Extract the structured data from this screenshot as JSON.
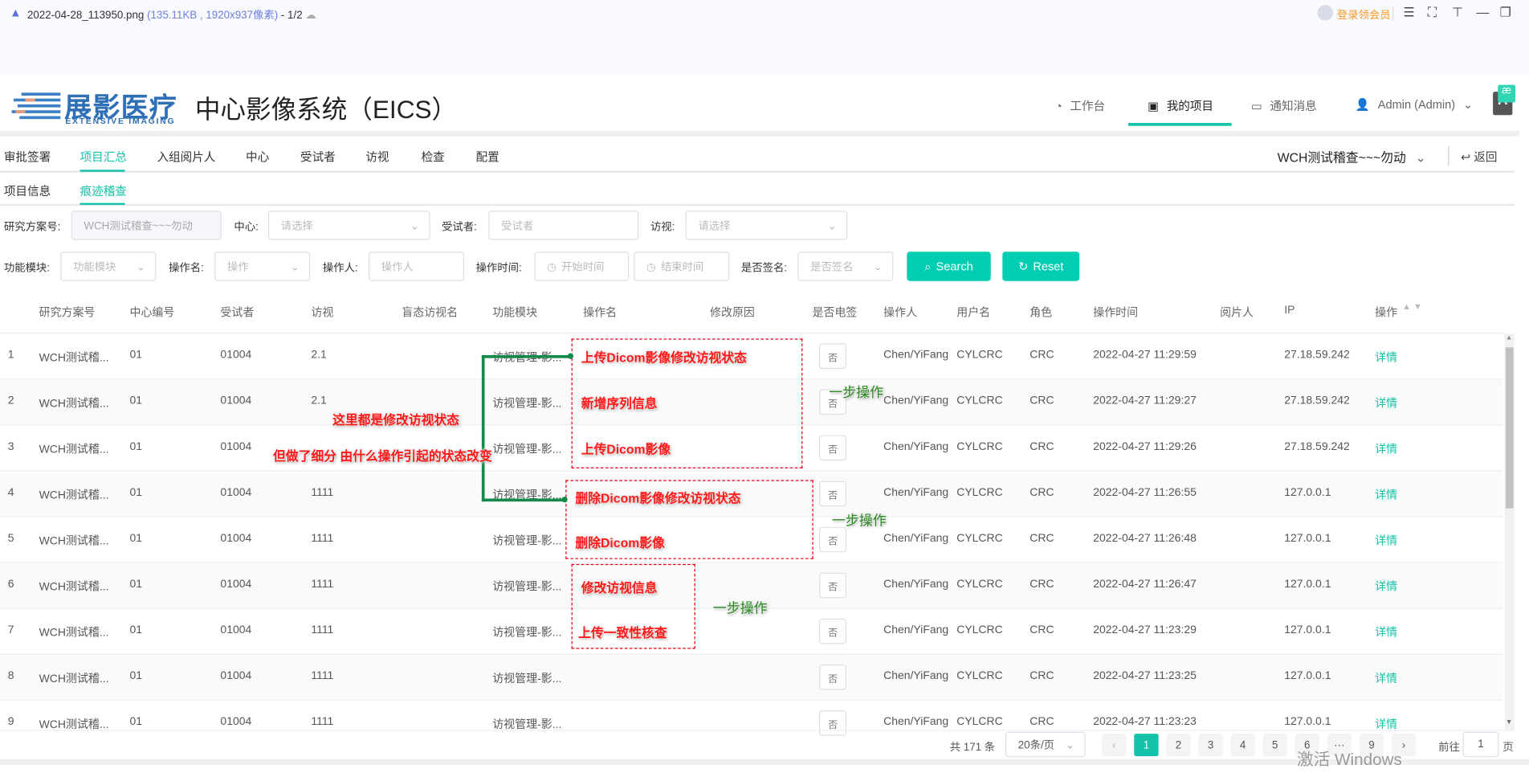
{
  "viewer": {
    "filename": "2022-04-28_113950.png",
    "info": "(135.11KB , 1920x937像素)",
    "page": "- 1/2",
    "member_label": "登录领会员"
  },
  "app": {
    "logo_text": "展影医疗",
    "logo_sub": "EXTENSIVE IMAGING",
    "title": "中心影像系统（EICS）",
    "nav": [
      {
        "label": "工作台",
        "icon": "dashboard-icon"
      },
      {
        "label": "我的项目",
        "icon": "box-icon",
        "active": true
      },
      {
        "label": "通知消息",
        "icon": "message-icon"
      },
      {
        "label": "Admin (Admin)",
        "icon": "user-icon"
      }
    ],
    "accent": "#13c2a8"
  },
  "tabs": [
    "审批签署",
    "项目汇总",
    "入组阅片人",
    "中心",
    "受试者",
    "访视",
    "检查",
    "配置"
  ],
  "active_tab": "项目汇总",
  "project_select": "WCH测试稽查~~~勿动",
  "back_label": "返回",
  "subtabs": [
    "项目信息",
    "痕迹稽查"
  ],
  "active_subtab": "痕迹稽查",
  "filters": {
    "study_label": "研究方案号:",
    "study_value": "WCH测试稽查~~~勿动",
    "center_label": "中心:",
    "center_placeholder": "请选择",
    "subject_label": "受试者:",
    "subject_placeholder": "受试者",
    "visit_label": "访视:",
    "visit_placeholder": "请选择",
    "module_label": "功能模块:",
    "module_placeholder": "功能模块",
    "opname_label": "操作名:",
    "opname_placeholder": "操作",
    "operator_label": "操作人:",
    "operator_placeholder": "操作人",
    "time_label": "操作时间:",
    "start_placeholder": "开始时间",
    "end_placeholder": "结束时间",
    "signed_label": "是否签名:",
    "signed_placeholder": "是否签名",
    "search": "Search",
    "reset": "Reset"
  },
  "table": {
    "columns": [
      "研究方案号",
      "中心编号",
      "受试者",
      "访视",
      "盲态访视名",
      "功能模块",
      "操作名",
      "修改原因",
      "是否电签",
      "操作人",
      "用户名",
      "角色",
      "操作时间",
      "阅片人",
      "IP",
      "操作"
    ],
    "rows": [
      {
        "no": "1",
        "study": "WCH测试稽...",
        "center": "01",
        "subject": "01004",
        "visit": "2.1",
        "module": "访视管理-影...",
        "esign": "否",
        "operator": "Chen/YiFang",
        "user": "CYLCRC",
        "role": "CRC",
        "time": "2022-04-27 11:29:59",
        "ip": "27.18.59.242",
        "action": "详情"
      },
      {
        "no": "2",
        "study": "WCH测试稽...",
        "center": "01",
        "subject": "01004",
        "visit": "2.1",
        "module": "访视管理-影...",
        "esign": "否",
        "operator": "Chen/YiFang",
        "user": "CYLCRC",
        "role": "CRC",
        "time": "2022-04-27 11:29:27",
        "ip": "27.18.59.242",
        "action": "详情"
      },
      {
        "no": "3",
        "study": "WCH测试稽...",
        "center": "01",
        "subject": "01004",
        "visit": "",
        "module": "访视管理-影...",
        "esign": "否",
        "operator": "Chen/YiFang",
        "user": "CYLCRC",
        "role": "CRC",
        "time": "2022-04-27 11:29:26",
        "ip": "27.18.59.242",
        "action": "详情"
      },
      {
        "no": "4",
        "study": "WCH测试稽...",
        "center": "01",
        "subject": "01004",
        "visit": "1111",
        "module": "访视管理-影...",
        "esign": "否",
        "operator": "Chen/YiFang",
        "user": "CYLCRC",
        "role": "CRC",
        "time": "2022-04-27 11:26:55",
        "ip": "127.0.0.1",
        "action": "详情"
      },
      {
        "no": "5",
        "study": "WCH测试稽...",
        "center": "01",
        "subject": "01004",
        "visit": "1111",
        "module": "访视管理-影...",
        "esign": "否",
        "operator": "Chen/YiFang",
        "user": "CYLCRC",
        "role": "CRC",
        "time": "2022-04-27 11:26:48",
        "ip": "127.0.0.1",
        "action": "详情"
      },
      {
        "no": "6",
        "study": "WCH测试稽...",
        "center": "01",
        "subject": "01004",
        "visit": "1111",
        "module": "访视管理-影...",
        "esign": "否",
        "operator": "Chen/YiFang",
        "user": "CYLCRC",
        "role": "CRC",
        "time": "2022-04-27 11:26:47",
        "ip": "127.0.0.1",
        "action": "详情"
      },
      {
        "no": "7",
        "study": "WCH测试稽...",
        "center": "01",
        "subject": "01004",
        "visit": "1111",
        "module": "访视管理-影...",
        "esign": "否",
        "operator": "Chen/YiFang",
        "user": "CYLCRC",
        "role": "CRC",
        "time": "2022-04-27 11:23:29",
        "ip": "127.0.0.1",
        "action": "详情"
      },
      {
        "no": "8",
        "study": "WCH测试稽...",
        "center": "01",
        "subject": "01004",
        "visit": "1111",
        "module": "访视管理-影...",
        "esign": "否",
        "operator": "Chen/YiFang",
        "user": "CYLCRC",
        "role": "CRC",
        "time": "2022-04-27 11:23:25",
        "ip": "127.0.0.1",
        "action": "详情"
      },
      {
        "no": "9",
        "study": "WCH测试稽...",
        "center": "01",
        "subject": "01004",
        "visit": "1111",
        "module": "访视管理-影...",
        "esign": "否",
        "operator": "Chen/YiFang",
        "user": "CYLCRC",
        "role": "CRC",
        "time": "2022-04-27 11:23:23",
        "ip": "127.0.0.1",
        "action": "详情"
      }
    ]
  },
  "pagination": {
    "total": "共 171 条",
    "page_size": "20条/页",
    "pages": [
      "1",
      "2",
      "3",
      "4",
      "5",
      "6",
      "···",
      "9"
    ],
    "current": "1",
    "goto_label": "前往",
    "goto_value": "1",
    "page_suffix": "页"
  },
  "annotations": {
    "ops": [
      "上传Dicom影像修改访视状态",
      "新增序列信息",
      "上传Dicom影像",
      "删除Dicom影像修改访视状态",
      "删除Dicom影像",
      "修改访视信息",
      "上传一致性核查"
    ],
    "one_step": "一步操作",
    "note1": "这里都是修改访视状态",
    "note2": "但做了细分 由什么操作引起的状态改变"
  },
  "watermark": "激活 Windows"
}
